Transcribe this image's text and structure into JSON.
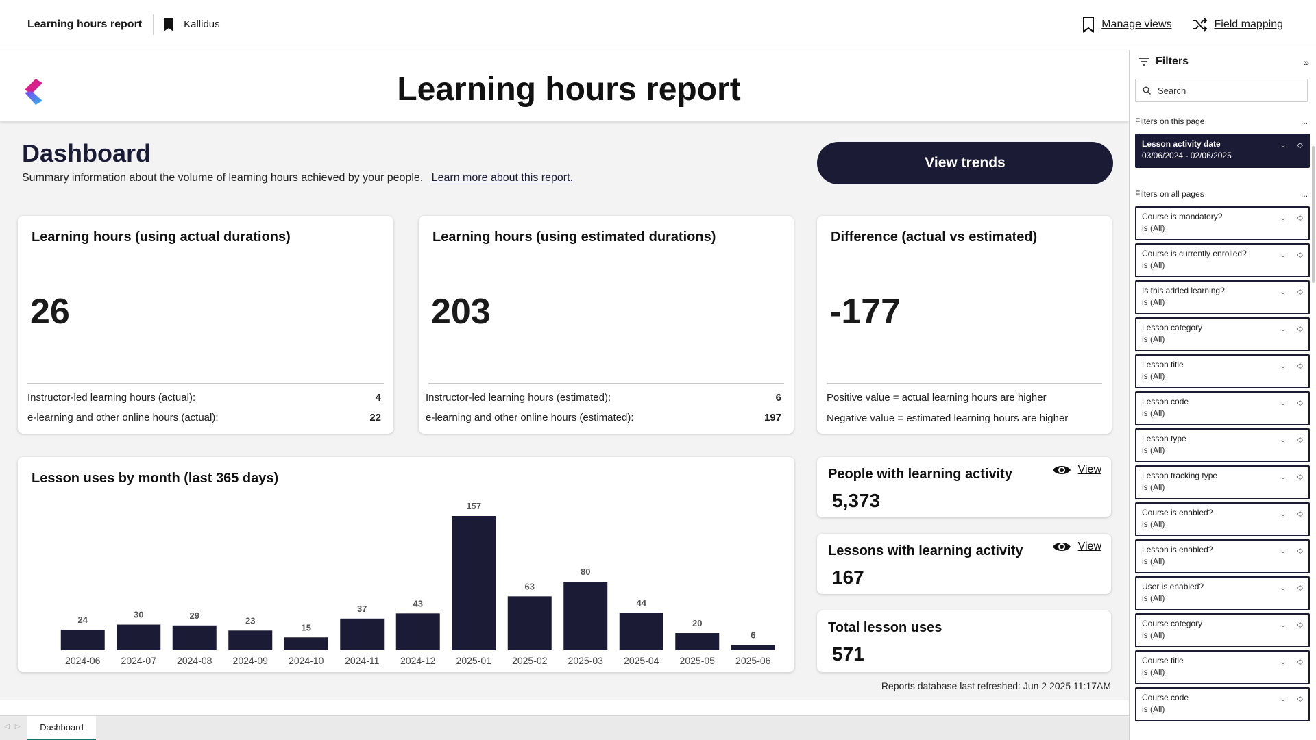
{
  "topbar": {
    "title": "Learning hours report",
    "workspace": "Kallidus",
    "manage_views": "Manage views",
    "field_mapping": "Field mapping"
  },
  "report": {
    "heading": "Learning hours report",
    "dashboard_title": "Dashboard",
    "dashboard_subtitle": "Summary information about the volume of learning hours achieved by your people.",
    "learn_more": "Learn more about this report.",
    "view_trends": "View trends",
    "refreshed": "Reports database last refreshed: Jun  2 2025 11:17AM"
  },
  "cards": {
    "actual": {
      "title": "Learning hours (using actual durations)",
      "value": "26",
      "row1_label": "Instructor-led learning hours (actual):",
      "row1_value": "4",
      "row2_label": "e-learning and other online hours (actual):",
      "row2_value": "22"
    },
    "estimated": {
      "title": "Learning hours (using estimated durations)",
      "value": "203",
      "row1_label": "Instructor-led learning hours (estimated):",
      "row1_value": "6",
      "row2_label": "e-learning and other online hours (estimated):",
      "row2_value": "197"
    },
    "difference": {
      "title": "Difference (actual vs estimated)",
      "value": "-177",
      "note1": "Positive value = actual learning hours are higher",
      "note2": "Negative value = estimated learning hours are higher"
    }
  },
  "kpis": {
    "people": {
      "title": "People with learning activity",
      "value": "5,373",
      "view": "View"
    },
    "lessons": {
      "title": "Lessons with learning activity",
      "value": "167",
      "view": "View"
    },
    "uses": {
      "title": "Total lesson uses",
      "value": "571"
    }
  },
  "chart_data": {
    "type": "bar",
    "title": "Lesson uses by month (last 365 days)",
    "categories": [
      "2024-06",
      "2024-07",
      "2024-08",
      "2024-09",
      "2024-10",
      "2024-11",
      "2024-12",
      "2025-01",
      "2025-02",
      "2025-03",
      "2025-04",
      "2025-05",
      "2025-06"
    ],
    "values": [
      24,
      30,
      29,
      23,
      15,
      37,
      43,
      157,
      63,
      80,
      44,
      20,
      6
    ],
    "xlabel": "",
    "ylabel": "",
    "ylim": [
      0,
      157
    ],
    "grid": false,
    "bar_color": "#1b1b35"
  },
  "filters": {
    "title": "Filters",
    "search_placeholder": "Search",
    "on_page_label": "Filters on this page",
    "on_all_label": "Filters on all pages",
    "more": "...",
    "page_filters": [
      {
        "name": "Lesson activity date",
        "value": "03/06/2024 - 02/06/2025"
      }
    ],
    "all_filters": [
      {
        "name": "Course is mandatory?",
        "value": "is (All)"
      },
      {
        "name": "Course is currently enrolled?",
        "value": "is (All)"
      },
      {
        "name": "Is this added learning?",
        "value": "is (All)"
      },
      {
        "name": "Lesson category",
        "value": "is (All)"
      },
      {
        "name": "Lesson title",
        "value": "is (All)"
      },
      {
        "name": "Lesson code",
        "value": "is (All)"
      },
      {
        "name": "Lesson type",
        "value": "is (All)"
      },
      {
        "name": "Lesson tracking type",
        "value": "is (All)"
      },
      {
        "name": "Course is enabled?",
        "value": "is (All)"
      },
      {
        "name": "Lesson is enabled?",
        "value": "is (All)"
      },
      {
        "name": "User is enabled?",
        "value": "is (All)"
      },
      {
        "name": "Course category",
        "value": "is (All)"
      },
      {
        "name": "Course title",
        "value": "is (All)"
      },
      {
        "name": "Course code",
        "value": "is (All)"
      }
    ]
  },
  "tabs": {
    "active": "Dashboard"
  }
}
